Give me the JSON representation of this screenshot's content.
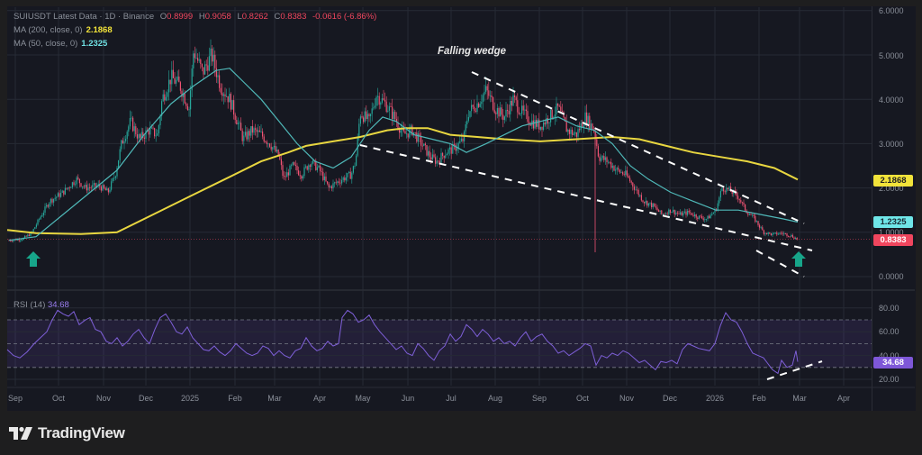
{
  "header": {
    "symbol": "SUIUSDT Latest Data · 1D · Binance",
    "open_label": "O",
    "open": "0.8999",
    "high_label": "H",
    "high": "0.9058",
    "low_label": "L",
    "low": "0.8262",
    "close_label": "C",
    "close": "0.8383",
    "change": "-0.0616 (-6.86%)",
    "ma200_label": "MA (200, close, 0)",
    "ma200_value": "2.1868",
    "ma50_label": "MA (50, close, 0)",
    "ma50_value": "1.2325"
  },
  "annotation": "Falling wedge",
  "price_axis": [
    "6.0000",
    "5.0000",
    "4.0000",
    "3.0000",
    "2.0000",
    "1.0000",
    "0.0000"
  ],
  "price_tags": {
    "ma200": "2.1868",
    "ma50": "1.2325",
    "last": "0.8383"
  },
  "rsi": {
    "label": "RSI (14)",
    "value": "34.68",
    "axis": [
      "80.00",
      "60.00",
      "40.00",
      "20.00"
    ]
  },
  "time_axis": [
    "Sep",
    "Oct",
    "Nov",
    "Dec",
    "2025",
    "Feb",
    "Mar",
    "Apr",
    "May",
    "Jun",
    "Jul",
    "Aug",
    "Sep",
    "Oct",
    "Nov",
    "Dec",
    "2026",
    "Feb",
    "Mar",
    "Apr"
  ],
  "colors": {
    "up": "#26a69a",
    "down": "#ef5373",
    "ma200": "#e8d640",
    "ma50": "#4fb8b8",
    "rsi": "#7e5fd8",
    "last_price": "#f0465e",
    "arrow": "#17a58a",
    "wedge": "#ffffff"
  },
  "brand": "TradingView",
  "chart_data": {
    "type": "candlestick",
    "title": "SUIUSDT Latest Data · 1D · Binance",
    "annotations": [
      "Falling wedge",
      "Buy arrow (Sep 2024)",
      "Buy arrow (Mar 2026)",
      "RSI bullish divergence trendline"
    ],
    "x_ticks": [
      "Sep",
      "Oct",
      "Nov",
      "Dec",
      "2025",
      "Feb",
      "Mar",
      "Apr",
      "May",
      "Jun",
      "Jul",
      "Aug",
      "Sep",
      "Oct",
      "Nov",
      "Dec",
      "2026",
      "Feb",
      "Mar",
      "Apr"
    ],
    "ylim": [
      0,
      6
    ],
    "approx_monthly_close": {
      "months": [
        "Sep24",
        "Oct24",
        "Nov24",
        "Dec24",
        "Jan25",
        "Feb25",
        "Mar25",
        "Apr25",
        "May25",
        "Jun25",
        "Jul25",
        "Aug25",
        "Sep25",
        "Oct25",
        "Nov25",
        "Dec25",
        "Jan26",
        "Feb26",
        "Mar26"
      ],
      "close": [
        1.0,
        1.9,
        2.2,
        3.9,
        4.9,
        3.0,
        2.3,
        2.1,
        3.9,
        3.0,
        3.9,
        3.6,
        3.4,
        2.6,
        1.9,
        1.5,
        1.6,
        1.0,
        0.84
      ]
    },
    "series": [
      {
        "name": "MA 200",
        "last": 2.1868
      },
      {
        "name": "MA 50",
        "last": 1.2325
      },
      {
        "name": "RSI 14",
        "last": 34.68,
        "bands": [
          30,
          50,
          70
        ]
      }
    ],
    "last_ohlc": {
      "open": 0.8999,
      "high": 0.9058,
      "low": 0.8262,
      "close": 0.8383,
      "change": -0.0616,
      "change_pct": -6.86
    }
  },
  "series_points": {
    "price": [
      [
        10,
        0.82
      ],
      [
        25,
        0.85
      ],
      [
        35,
        0.98
      ],
      [
        45,
        1.35
      ],
      [
        55,
        1.7
      ],
      [
        70,
        1.9
      ],
      [
        85,
        2.2
      ],
      [
        95,
        2.0
      ],
      [
        110,
        2.05
      ],
      [
        120,
        1.9
      ],
      [
        128,
        2.3
      ],
      [
        135,
        3.0
      ],
      [
        145,
        3.5
      ],
      [
        155,
        3.1
      ],
      [
        165,
        3.3
      ],
      [
        175,
        3.2
      ],
      [
        180,
        4.0
      ],
      [
        190,
        4.5
      ],
      [
        200,
        4.3
      ],
      [
        210,
        3.8
      ],
      [
        215,
        5.1
      ],
      [
        225,
        4.6
      ],
      [
        235,
        5.0
      ],
      [
        245,
        4.3
      ],
      [
        255,
        4.0
      ],
      [
        262,
        3.6
      ],
      [
        270,
        3.1
      ],
      [
        280,
        3.3
      ],
      [
        290,
        3.2
      ],
      [
        300,
        3.0
      ],
      [
        310,
        2.7
      ],
      [
        315,
        2.2
      ],
      [
        325,
        2.5
      ],
      [
        335,
        2.3
      ],
      [
        345,
        2.6
      ],
      [
        355,
        2.4
      ],
      [
        365,
        2.0
      ],
      [
        372,
        2.1
      ],
      [
        380,
        2.2
      ],
      [
        390,
        2.3
      ],
      [
        395,
        2.6
      ],
      [
        400,
        3.7
      ],
      [
        410,
        3.5
      ],
      [
        418,
        4.1
      ],
      [
        428,
        3.9
      ],
      [
        438,
        3.6
      ],
      [
        448,
        3.2
      ],
      [
        458,
        3.3
      ],
      [
        468,
        3.0
      ],
      [
        478,
        2.7
      ],
      [
        485,
        2.6
      ],
      [
        495,
        2.8
      ],
      [
        505,
        2.9
      ],
      [
        515,
        3.1
      ],
      [
        520,
        3.7
      ],
      [
        530,
        3.9
      ],
      [
        540,
        4.2
      ],
      [
        550,
        3.8
      ],
      [
        560,
        3.6
      ],
      [
        570,
        4.0
      ],
      [
        580,
        3.7
      ],
      [
        590,
        3.5
      ],
      [
        600,
        3.4
      ],
      [
        610,
        3.6
      ],
      [
        620,
        3.8
      ],
      [
        630,
        3.3
      ],
      [
        640,
        3.2
      ],
      [
        650,
        3.6
      ],
      [
        660,
        3.3
      ],
      [
        665,
        2.7
      ],
      [
        675,
        2.6
      ],
      [
        685,
        2.4
      ],
      [
        695,
        2.3
      ],
      [
        705,
        2.0
      ],
      [
        715,
        1.7
      ],
      [
        725,
        1.6
      ],
      [
        735,
        1.4
      ],
      [
        745,
        1.5
      ],
      [
        755,
        1.4
      ],
      [
        765,
        1.45
      ],
      [
        775,
        1.35
      ],
      [
        785,
        1.3
      ],
      [
        795,
        1.5
      ],
      [
        802,
        2.0
      ],
      [
        810,
        1.95
      ],
      [
        820,
        1.8
      ],
      [
        828,
        1.5
      ],
      [
        838,
        1.3
      ],
      [
        848,
        1.0
      ],
      [
        858,
        0.95
      ],
      [
        868,
        0.98
      ],
      [
        878,
        0.93
      ],
      [
        886,
        0.84
      ]
    ],
    "ma50": [
      [
        10,
        0.82
      ],
      [
        40,
        0.9
      ],
      [
        70,
        1.4
      ],
      [
        100,
        1.9
      ],
      [
        130,
        2.4
      ],
      [
        160,
        3.2
      ],
      [
        190,
        3.9
      ],
      [
        215,
        4.3
      ],
      [
        240,
        4.65
      ],
      [
        255,
        4.7
      ],
      [
        270,
        4.4
      ],
      [
        290,
        4.0
      ],
      [
        310,
        3.5
      ],
      [
        330,
        3.0
      ],
      [
        350,
        2.6
      ],
      [
        370,
        2.45
      ],
      [
        390,
        2.7
      ],
      [
        410,
        3.3
      ],
      [
        425,
        3.6
      ],
      [
        440,
        3.5
      ],
      [
        460,
        3.2
      ],
      [
        480,
        3.1
      ],
      [
        500,
        3.0
      ],
      [
        518,
        2.8
      ],
      [
        540,
        3.0
      ],
      [
        560,
        3.2
      ],
      [
        580,
        3.4
      ],
      [
        600,
        3.5
      ],
      [
        620,
        3.6
      ],
      [
        640,
        3.4
      ],
      [
        660,
        3.3
      ],
      [
        680,
        3.0
      ],
      [
        700,
        2.5
      ],
      [
        720,
        2.2
      ],
      [
        745,
        1.9
      ],
      [
        770,
        1.7
      ],
      [
        795,
        1.5
      ],
      [
        820,
        1.5
      ],
      [
        845,
        1.4
      ],
      [
        870,
        1.3
      ],
      [
        886,
        1.23
      ]
    ],
    "ma200": [
      [
        8,
        1.05
      ],
      [
        40,
        0.98
      ],
      [
        90,
        0.96
      ],
      [
        130,
        1.0
      ],
      [
        170,
        1.4
      ],
      [
        210,
        1.8
      ],
      [
        250,
        2.2
      ],
      [
        290,
        2.6
      ],
      [
        320,
        2.8
      ],
      [
        340,
        2.95
      ],
      [
        370,
        3.05
      ],
      [
        400,
        3.15
      ],
      [
        430,
        3.3
      ],
      [
        450,
        3.35
      ],
      [
        475,
        3.35
      ],
      [
        500,
        3.2
      ],
      [
        530,
        3.15
      ],
      [
        560,
        3.1
      ],
      [
        600,
        3.05
      ],
      [
        640,
        3.1
      ],
      [
        680,
        3.15
      ],
      [
        710,
        3.1
      ],
      [
        740,
        2.95
      ],
      [
        770,
        2.8
      ],
      [
        800,
        2.7
      ],
      [
        830,
        2.6
      ],
      [
        860,
        2.45
      ],
      [
        886,
        2.19
      ]
    ],
    "rsi": [
      [
        8,
        45
      ],
      [
        15,
        40
      ],
      [
        22,
        38
      ],
      [
        30,
        43
      ],
      [
        38,
        50
      ],
      [
        45,
        55
      ],
      [
        52,
        60
      ],
      [
        58,
        70
      ],
      [
        64,
        78
      ],
      [
        70,
        75
      ],
      [
        76,
        73
      ],
      [
        82,
        77
      ],
      [
        88,
        66
      ],
      [
        95,
        70
      ],
      [
        100,
        72
      ],
      [
        106,
        62
      ],
      [
        112,
        60
      ],
      [
        118,
        52
      ],
      [
        124,
        50
      ],
      [
        130,
        55
      ],
      [
        136,
        48
      ],
      [
        142,
        52
      ],
      [
        148,
        58
      ],
      [
        154,
        62
      ],
      [
        160,
        55
      ],
      [
        166,
        50
      ],
      [
        172,
        62
      ],
      [
        178,
        72
      ],
      [
        184,
        75
      ],
      [
        190,
        68
      ],
      [
        196,
        60
      ],
      [
        202,
        58
      ],
      [
        208,
        64
      ],
      [
        214,
        55
      ],
      [
        220,
        50
      ],
      [
        226,
        45
      ],
      [
        232,
        44
      ],
      [
        238,
        48
      ],
      [
        244,
        43
      ],
      [
        250,
        40
      ],
      [
        256,
        44
      ],
      [
        262,
        50
      ],
      [
        268,
        46
      ],
      [
        274,
        42
      ],
      [
        280,
        40
      ],
      [
        286,
        42
      ],
      [
        292,
        48
      ],
      [
        298,
        46
      ],
      [
        304,
        40
      ],
      [
        310,
        44
      ],
      [
        316,
        40
      ],
      [
        322,
        38
      ],
      [
        328,
        44
      ],
      [
        334,
        46
      ],
      [
        340,
        55
      ],
      [
        346,
        48
      ],
      [
        352,
        44
      ],
      [
        358,
        46
      ],
      [
        364,
        52
      ],
      [
        370,
        48
      ],
      [
        376,
        50
      ],
      [
        380,
        72
      ],
      [
        386,
        78
      ],
      [
        392,
        75
      ],
      [
        398,
        68
      ],
      [
        404,
        70
      ],
      [
        410,
        74
      ],
      [
        416,
        66
      ],
      [
        422,
        60
      ],
      [
        428,
        55
      ],
      [
        434,
        50
      ],
      [
        440,
        45
      ],
      [
        446,
        48
      ],
      [
        452,
        42
      ],
      [
        458,
        40
      ],
      [
        464,
        50
      ],
      [
        470,
        46
      ],
      [
        476,
        40
      ],
      [
        482,
        36
      ],
      [
        488,
        44
      ],
      [
        494,
        48
      ],
      [
        500,
        58
      ],
      [
        506,
        52
      ],
      [
        512,
        56
      ],
      [
        518,
        66
      ],
      [
        524,
        62
      ],
      [
        530,
        56
      ],
      [
        536,
        62
      ],
      [
        542,
        58
      ],
      [
        548,
        52
      ],
      [
        554,
        55
      ],
      [
        560,
        50
      ],
      [
        566,
        52
      ],
      [
        572,
        48
      ],
      [
        578,
        55
      ],
      [
        584,
        60
      ],
      [
        590,
        52
      ],
      [
        596,
        56
      ],
      [
        602,
        58
      ],
      [
        608,
        52
      ],
      [
        614,
        48
      ],
      [
        620,
        42
      ],
      [
        626,
        44
      ],
      [
        632,
        40
      ],
      [
        638,
        43
      ],
      [
        644,
        46
      ],
      [
        650,
        50
      ],
      [
        656,
        48
      ],
      [
        662,
        32
      ],
      [
        668,
        40
      ],
      [
        674,
        38
      ],
      [
        680,
        42
      ],
      [
        686,
        40
      ],
      [
        692,
        44
      ],
      [
        698,
        42
      ],
      [
        704,
        38
      ],
      [
        710,
        34
      ],
      [
        716,
        36
      ],
      [
        722,
        32
      ],
      [
        728,
        28
      ],
      [
        734,
        35
      ],
      [
        740,
        34
      ],
      [
        746,
        36
      ],
      [
        752,
        33
      ],
      [
        758,
        45
      ],
      [
        764,
        50
      ],
      [
        770,
        48
      ],
      [
        776,
        46
      ],
      [
        782,
        45
      ],
      [
        788,
        44
      ],
      [
        794,
        50
      ],
      [
        800,
        65
      ],
      [
        806,
        76
      ],
      [
        812,
        70
      ],
      [
        818,
        68
      ],
      [
        824,
        60
      ],
      [
        830,
        50
      ],
      [
        836,
        42
      ],
      [
        842,
        40
      ],
      [
        848,
        38
      ],
      [
        852,
        34
      ],
      [
        858,
        28
      ],
      [
        864,
        25
      ],
      [
        868,
        36
      ],
      [
        874,
        30
      ],
      [
        880,
        32
      ],
      [
        884,
        44
      ],
      [
        886,
        34.68
      ]
    ]
  }
}
